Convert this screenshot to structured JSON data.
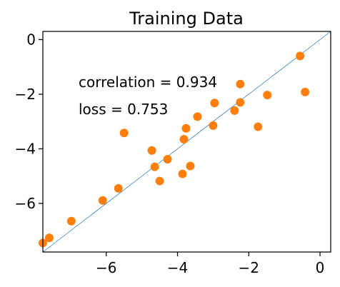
{
  "chart_data": {
    "type": "scatter",
    "title": "Training Data",
    "xlabel": "",
    "ylabel": "",
    "xlim": [
      -7.78,
      0.3
    ],
    "ylim": [
      -7.78,
      0.3
    ],
    "xticks": [
      -6,
      -4,
      -2,
      0
    ],
    "xtick_labels": [
      "−6",
      "−4",
      "−2",
      "0"
    ],
    "yticks": [
      -6,
      -4,
      -2,
      0
    ],
    "ytick_labels": [
      "−6",
      "−4",
      "−2",
      "0"
    ],
    "grid": false,
    "legend": "none",
    "reference_line": {
      "from": [
        -7.78,
        -7.78
      ],
      "to": [
        0.3,
        0.3
      ],
      "color": "#1f77b4"
    },
    "points": {
      "color": "#ff7f0e",
      "x": [
        -7.78,
        -7.6,
        -6.98,
        -6.1,
        -5.66,
        -5.5,
        -4.72,
        -4.64,
        -4.5,
        -4.28,
        -3.86,
        -3.82,
        -3.76,
        -3.64,
        -3.44,
        -3.0,
        -2.96,
        -2.4,
        -2.24,
        -2.24,
        -1.74,
        -1.48,
        -0.56,
        -0.42
      ],
      "y": [
        -7.45,
        -7.26,
        -6.65,
        -5.89,
        -5.45,
        -3.42,
        -4.06,
        -4.66,
        -5.18,
        -4.38,
        -4.92,
        -3.65,
        -3.25,
        -4.63,
        -2.82,
        -3.15,
        -2.32,
        -2.6,
        -2.3,
        -1.63,
        -3.19,
        -2.03,
        -0.6,
        -1.92
      ]
    },
    "annotations": [
      "correlation = 0.934",
      "loss = 0.753"
    ]
  }
}
